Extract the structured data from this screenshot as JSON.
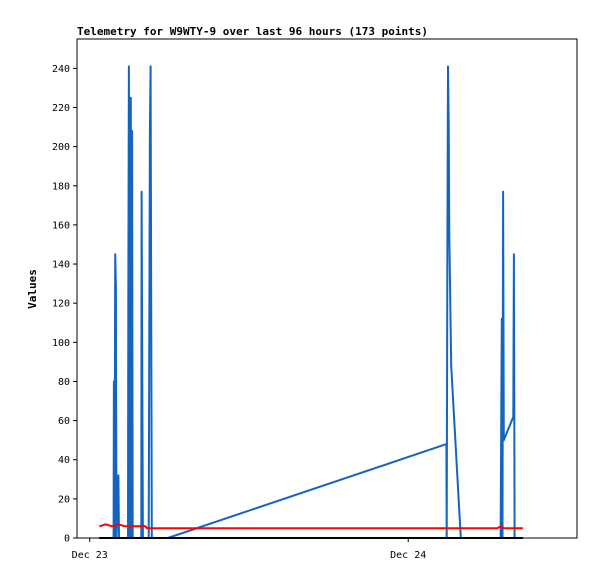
{
  "chart_data": {
    "type": "line",
    "title": "Telemetry for W9WTY-9 over last 96 hours (173 points)",
    "xlabel": "",
    "ylabel": "Values",
    "ylim": [
      0,
      255
    ],
    "yticks": [
      0,
      20,
      40,
      60,
      80,
      100,
      120,
      140,
      160,
      180,
      200,
      220,
      240
    ],
    "xlim": [
      -0.04,
      1.53
    ],
    "xticks": [
      {
        "x": 0,
        "label": "Dec 23"
      },
      {
        "x": 1,
        "label": "Dec 24"
      }
    ],
    "grid": false,
    "x_unit": "days from Dec 23",
    "series": [
      {
        "color": "#1565c0",
        "points": [
          [
            0.075,
            0
          ],
          [
            0.076,
            80
          ],
          [
            0.078,
            0
          ],
          [
            0.08,
            145
          ],
          [
            0.082,
            128
          ],
          [
            0.084,
            0
          ],
          [
            0.09,
            32
          ],
          [
            0.092,
            0
          ],
          [
            0.12,
            0
          ],
          [
            0.121,
            120
          ],
          [
            0.123,
            241
          ],
          [
            0.125,
            0
          ],
          [
            0.127,
            113
          ],
          [
            0.129,
            225
          ],
          [
            0.131,
            0
          ],
          [
            0.133,
            208
          ],
          [
            0.135,
            0
          ],
          [
            0.162,
            0
          ],
          [
            0.163,
            177
          ],
          [
            0.165,
            80
          ],
          [
            0.167,
            0
          ],
          [
            0.185,
            0
          ],
          [
            0.187,
            103
          ],
          [
            0.189,
            208
          ],
          [
            0.191,
            241
          ],
          [
            0.193,
            120
          ],
          [
            0.195,
            0
          ],
          [
            0.22,
            0
          ],
          [
            0.245,
            0
          ],
          [
            1.12,
            48
          ],
          [
            1.121,
            0
          ],
          [
            1.123,
            151
          ],
          [
            1.125,
            241
          ],
          [
            1.127,
            212
          ],
          [
            1.129,
            155
          ],
          [
            1.135,
            88
          ],
          [
            1.165,
            0
          ],
          [
            1.29,
            0
          ],
          [
            1.292,
            56
          ],
          [
            1.294,
            112
          ],
          [
            1.296,
            0
          ],
          [
            1.298,
            177
          ],
          [
            1.3,
            50
          ],
          [
            1.33,
            62
          ],
          [
            1.332,
            145
          ],
          [
            1.334,
            0
          ]
        ]
      },
      {
        "color": "#ff0000",
        "points": [
          [
            0.03,
            6
          ],
          [
            0.05,
            7
          ],
          [
            0.07,
            6
          ],
          [
            0.09,
            7
          ],
          [
            0.11,
            6
          ],
          [
            0.13,
            6
          ],
          [
            0.15,
            6
          ],
          [
            0.175,
            6
          ],
          [
            0.18,
            5
          ],
          [
            0.4,
            5
          ],
          [
            0.7,
            5
          ],
          [
            1.0,
            5
          ],
          [
            1.2,
            5
          ],
          [
            1.28,
            5
          ],
          [
            1.29,
            6
          ],
          [
            1.3,
            5
          ],
          [
            1.36,
            5
          ]
        ]
      },
      {
        "color": "#000000",
        "points": [
          [
            0.03,
            0
          ],
          [
            1.36,
            0
          ]
        ]
      }
    ]
  }
}
